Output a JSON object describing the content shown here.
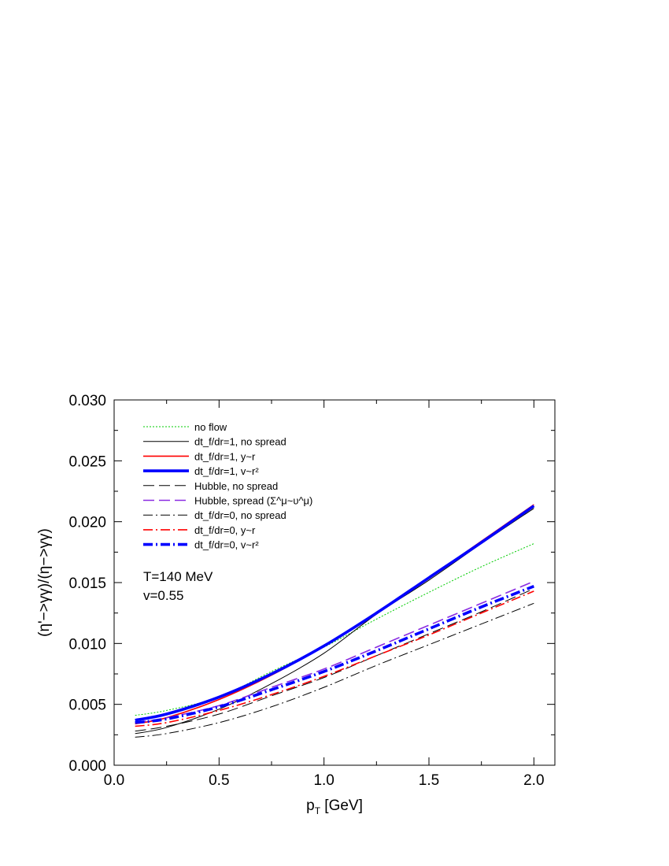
{
  "chart_data": {
    "type": "line",
    "xlabel": "p",
    "xlabel_sub": "T",
    "xlabel_unit": " [GeV]",
    "ylabel": "(η'−>γγ)/(η−>γγ)",
    "xlim": [
      0.0,
      2.1
    ],
    "ylim": [
      0.0,
      0.03
    ],
    "xticks": [
      0.0,
      0.5,
      1.0,
      1.5,
      2.0
    ],
    "xtick_labels": [
      "0.0",
      "0.5",
      "1.0",
      "1.5",
      "2.0"
    ],
    "yticks": [
      0.0,
      0.005,
      0.01,
      0.015,
      0.02,
      0.025,
      0.03
    ],
    "ytick_labels": [
      "0.000",
      "0.005",
      "0.010",
      "0.015",
      "0.020",
      "0.025",
      "0.030"
    ],
    "grid": false,
    "legend_position": "top-left",
    "annotations": [
      "T=140 MeV",
      "v=0.55"
    ],
    "series": [
      {
        "name": "no flow",
        "color": "#00cc00",
        "dash": "dotted",
        "width": "thin",
        "x": [
          0.1,
          0.25,
          0.5,
          0.75,
          1.0,
          1.25,
          1.5,
          1.75,
          2.0
        ],
        "y": [
          0.0041,
          0.0045,
          0.0056,
          0.0077,
          0.0097,
          0.012,
          0.0142,
          0.0163,
          0.0182
        ]
      },
      {
        "name": "dt_f/dr=1, no spread",
        "color": "#000000",
        "dash": "solid",
        "width": "thin",
        "x": [
          0.1,
          0.25,
          0.5,
          0.75,
          1.0,
          1.25,
          1.5,
          1.75,
          2.0
        ],
        "y": [
          0.0026,
          0.0031,
          0.0046,
          0.0067,
          0.0092,
          0.0124,
          0.0152,
          0.0182,
          0.0211
        ]
      },
      {
        "name": "dt_f/dr=1, y~r",
        "color": "#ff0000",
        "dash": "solid",
        "width": "medium",
        "x": [
          0.1,
          0.25,
          0.5,
          0.75,
          1.0,
          1.25,
          1.5,
          1.75,
          2.0
        ],
        "y": [
          0.0034,
          0.0039,
          0.0054,
          0.0074,
          0.0098,
          0.0125,
          0.0154,
          0.0184,
          0.0214
        ]
      },
      {
        "name": "dt_f/dr=1, v~r²",
        "color": "#0000ff",
        "dash": "solid",
        "width": "thick",
        "x": [
          0.1,
          0.25,
          0.5,
          0.75,
          1.0,
          1.25,
          1.5,
          1.75,
          2.0
        ],
        "y": [
          0.0037,
          0.0042,
          0.0056,
          0.0075,
          0.0098,
          0.0125,
          0.0154,
          0.0183,
          0.0213
        ]
      },
      {
        "name": "Hubble, no spread",
        "color": "#000000",
        "dash": "longdash",
        "width": "thin",
        "x": [
          0.1,
          0.25,
          0.5,
          0.75,
          1.0,
          1.25,
          1.5,
          1.75,
          2.0
        ],
        "y": [
          0.0028,
          0.0032,
          0.0042,
          0.0057,
          0.0072,
          0.009,
          0.0108,
          0.0126,
          0.0145
        ]
      },
      {
        "name": "Hubble, spread (Σ^μ~υ^μ)",
        "color": "#8a2be2",
        "dash": "longdash",
        "width": "medium",
        "x": [
          0.1,
          0.25,
          0.5,
          0.75,
          1.0,
          1.25,
          1.5,
          1.75,
          2.0
        ],
        "y": [
          0.0035,
          0.0039,
          0.0049,
          0.0064,
          0.0079,
          0.0097,
          0.0115,
          0.0133,
          0.0151
        ]
      },
      {
        "name": "dt_f/dr=0, no spread",
        "color": "#000000",
        "dash": "dashdot",
        "width": "thin",
        "x": [
          0.1,
          0.25,
          0.5,
          0.75,
          1.0,
          1.25,
          1.5,
          1.75,
          2.0
        ],
        "y": [
          0.0023,
          0.0026,
          0.0035,
          0.0048,
          0.0064,
          0.0082,
          0.0099,
          0.0116,
          0.0133
        ]
      },
      {
        "name": "dt_f/dr=0, y~r",
        "color": "#ff0000",
        "dash": "dashdot",
        "width": "medium",
        "x": [
          0.1,
          0.25,
          0.5,
          0.75,
          1.0,
          1.25,
          1.5,
          1.75,
          2.0
        ],
        "y": [
          0.0032,
          0.0035,
          0.0045,
          0.0058,
          0.0073,
          0.009,
          0.0107,
          0.0125,
          0.0143
        ]
      },
      {
        "name": "dt_f/dr=0, v~r²",
        "color": "#0000ff",
        "dash": "dashdot",
        "width": "thick",
        "x": [
          0.1,
          0.25,
          0.5,
          0.75,
          1.0,
          1.25,
          1.5,
          1.75,
          2.0
        ],
        "y": [
          0.0035,
          0.0038,
          0.0048,
          0.0062,
          0.0077,
          0.0094,
          0.0112,
          0.013,
          0.0147
        ]
      }
    ]
  }
}
